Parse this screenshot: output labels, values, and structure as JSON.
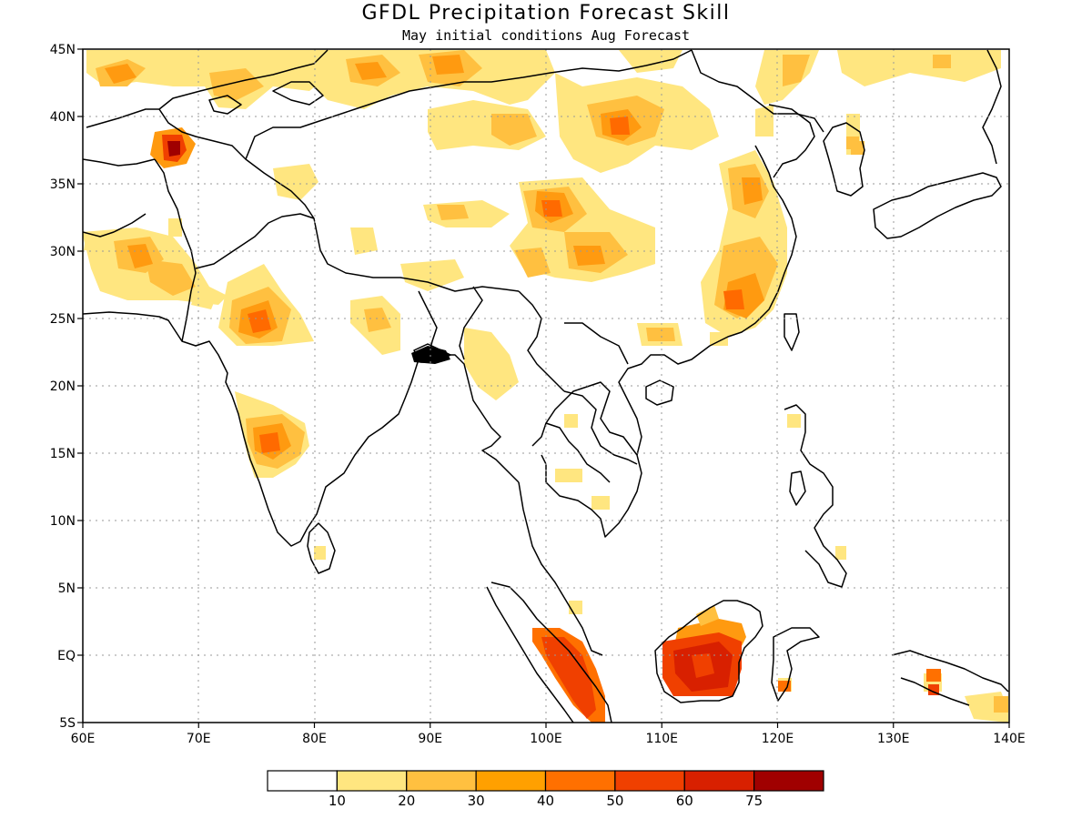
{
  "title": "GFDL Precipitation Forecast Skill",
  "subtitle": "May initial conditions  Aug Forecast",
  "map": {
    "lon_range": [
      60,
      140
    ],
    "lat_range": [
      -5,
      45
    ],
    "lon_ticks": [
      "60E",
      "70E",
      "80E",
      "90E",
      "100E",
      "110E",
      "120E",
      "130E",
      "140E"
    ],
    "lat_ticks": [
      "5S",
      "EQ",
      "5N",
      "10N",
      "15N",
      "20N",
      "25N",
      "30N",
      "35N",
      "40N",
      "45N"
    ],
    "grid": "dotted"
  },
  "colorbar": {
    "colors": [
      "#ffffff",
      "#ffe680",
      "#ffc040",
      "#ffa000",
      "#ff7000",
      "#f04000",
      "#d82000",
      "#a00000"
    ],
    "labels": [
      "10",
      "20",
      "30",
      "40",
      "50",
      "60",
      "75"
    ]
  },
  "skill_regions": [
    {
      "lon": 67.8,
      "lat": 37.4,
      "level": 6,
      "region": "northern Afghanistan"
    },
    {
      "lon": 75.7,
      "lat": 24.6,
      "level": 4,
      "region": "central India"
    },
    {
      "lon": 76.0,
      "lat": 16.2,
      "level": 4,
      "region": "western Deccan"
    },
    {
      "lon": 100.3,
      "lat": 32.9,
      "level": 3,
      "region": "eastern Tibet"
    },
    {
      "lon": 113.2,
      "lat": -0.8,
      "level": 5,
      "region": "southern Borneo"
    },
    {
      "lon": 101.5,
      "lat": -1.5,
      "level": 5,
      "region": "Sumatra"
    },
    {
      "lon": 115.6,
      "lat": 26.0,
      "level": 4,
      "region": "southeast China"
    },
    {
      "lon": 93.1,
      "lat": 43.9,
      "level": 3,
      "region": "western Mongolia"
    },
    {
      "lon": 108.4,
      "lat": 39.3,
      "level": 3,
      "region": "northern China"
    }
  ]
}
